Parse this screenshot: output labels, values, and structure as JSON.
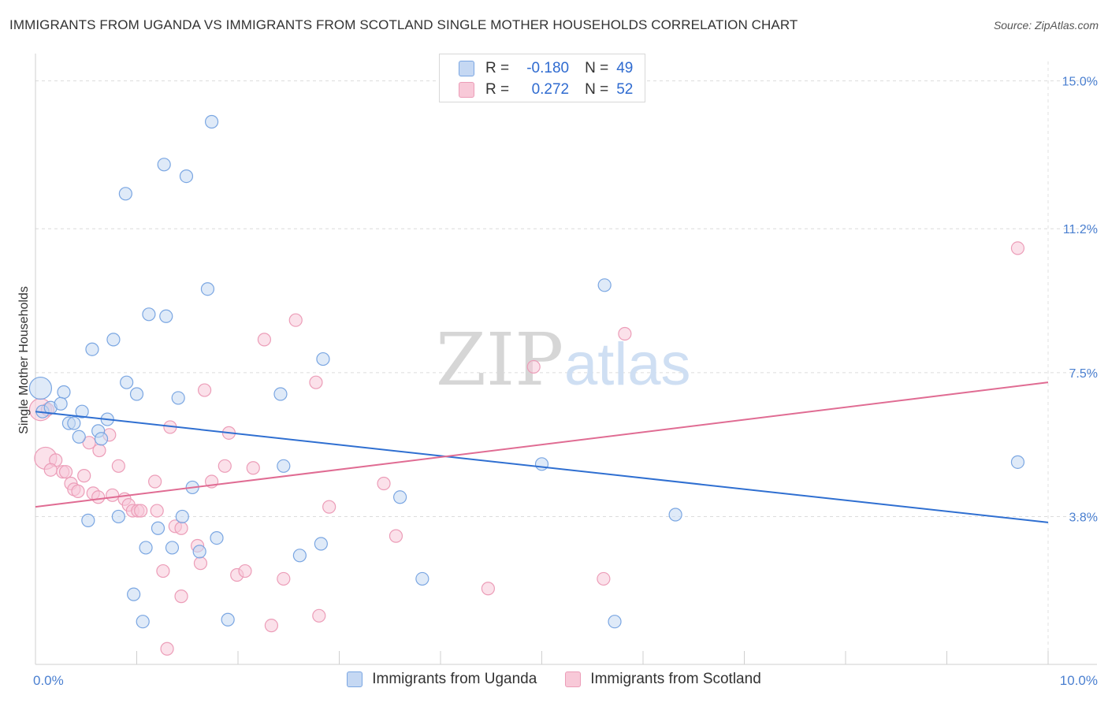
{
  "title": "IMMIGRANTS FROM UGANDA VS IMMIGRANTS FROM SCOTLAND SINGLE MOTHER HOUSEHOLDS CORRELATION CHART",
  "source": "Source: ZipAtlas.com",
  "watermark": {
    "zip": "ZIP",
    "atlas": "atlas"
  },
  "legend": {
    "rows": [
      {
        "r_label": "R =",
        "r_value": "-0.180",
        "n_label": "N =",
        "n_value": "49"
      },
      {
        "r_label": "R =",
        "r_value": "0.272",
        "n_label": "N =",
        "n_value": "52"
      }
    ]
  },
  "colors": {
    "uganda_fill": "#c5d8f3",
    "uganda_stroke": "#7aa6e2",
    "uganda_line": "#2f6fd1",
    "scotland_fill": "#f8c9d8",
    "scotland_stroke": "#ec9db8",
    "scotland_line": "#e06c93",
    "tick_text": "#4a7fd0"
  },
  "chart_data": {
    "type": "scatter",
    "title": "IMMIGRANTS FROM UGANDA VS IMMIGRANTS FROM SCOTLAND SINGLE MOTHER HOUSEHOLDS CORRELATION CHART",
    "xlabel": "",
    "ylabel": "Single Mother Households",
    "xlim": [
      0,
      10
    ],
    "ylim": [
      0,
      15.5
    ],
    "x_tick_labels": [
      "0.0%",
      "10.0%"
    ],
    "y_ticks": [
      {
        "value": 3.8,
        "label": "3.8%"
      },
      {
        "value": 7.5,
        "label": "7.5%"
      },
      {
        "value": 11.2,
        "label": "11.2%"
      },
      {
        "value": 15.0,
        "label": "15.0%"
      }
    ],
    "series": [
      {
        "name": "Immigrants from Uganda",
        "r": -0.18,
        "n": 49,
        "trend": {
          "x": [
            0,
            10
          ],
          "y": [
            6.5,
            3.65
          ]
        },
        "points": [
          {
            "x": 0.05,
            "y": 7.1,
            "big": true
          },
          {
            "x": 0.07,
            "y": 6.5
          },
          {
            "x": 0.15,
            "y": 6.6
          },
          {
            "x": 0.28,
            "y": 7.0
          },
          {
            "x": 0.25,
            "y": 6.7
          },
          {
            "x": 0.33,
            "y": 6.2
          },
          {
            "x": 0.38,
            "y": 6.2
          },
          {
            "x": 0.43,
            "y": 5.85
          },
          {
            "x": 0.46,
            "y": 6.5
          },
          {
            "x": 0.52,
            "y": 3.7
          },
          {
            "x": 0.56,
            "y": 8.1
          },
          {
            "x": 0.62,
            "y": 6.0
          },
          {
            "x": 0.65,
            "y": 5.8
          },
          {
            "x": 0.71,
            "y": 6.3
          },
          {
            "x": 0.77,
            "y": 8.35
          },
          {
            "x": 0.82,
            "y": 3.8
          },
          {
            "x": 0.89,
            "y": 12.1
          },
          {
            "x": 0.9,
            "y": 7.25
          },
          {
            "x": 0.97,
            "y": 1.8
          },
          {
            "x": 1.0,
            "y": 6.95
          },
          {
            "x": 1.06,
            "y": 1.1
          },
          {
            "x": 1.09,
            "y": 3.0
          },
          {
            "x": 1.12,
            "y": 9.0
          },
          {
            "x": 1.21,
            "y": 3.5
          },
          {
            "x": 1.27,
            "y": 12.85
          },
          {
            "x": 1.29,
            "y": 8.95
          },
          {
            "x": 1.35,
            "y": 3.0
          },
          {
            "x": 1.41,
            "y": 6.85
          },
          {
            "x": 1.45,
            "y": 3.8
          },
          {
            "x": 1.49,
            "y": 12.55
          },
          {
            "x": 1.55,
            "y": 4.55
          },
          {
            "x": 1.62,
            "y": 2.9
          },
          {
            "x": 1.7,
            "y": 9.65
          },
          {
            "x": 1.74,
            "y": 13.95
          },
          {
            "x": 1.79,
            "y": 3.25
          },
          {
            "x": 1.9,
            "y": 1.15
          },
          {
            "x": 2.42,
            "y": 6.95
          },
          {
            "x": 2.45,
            "y": 5.1
          },
          {
            "x": 2.61,
            "y": 2.8
          },
          {
            "x": 2.82,
            "y": 3.1
          },
          {
            "x": 2.84,
            "y": 7.85
          },
          {
            "x": 3.6,
            "y": 4.3
          },
          {
            "x": 3.82,
            "y": 2.2
          },
          {
            "x": 5.0,
            "y": 5.15
          },
          {
            "x": 5.62,
            "y": 9.75
          },
          {
            "x": 5.72,
            "y": 1.1
          },
          {
            "x": 6.32,
            "y": 3.85
          },
          {
            "x": 9.7,
            "y": 5.2
          }
        ]
      },
      {
        "name": "Immigrants from Scotland",
        "r": 0.272,
        "n": 52,
        "trend": {
          "x": [
            0,
            10
          ],
          "y": [
            4.05,
            7.25
          ]
        },
        "points": [
          {
            "x": 0.05,
            "y": 6.55,
            "big": true
          },
          {
            "x": 0.1,
            "y": 5.3,
            "big": true
          },
          {
            "x": 0.12,
            "y": 6.55
          },
          {
            "x": 0.2,
            "y": 5.25
          },
          {
            "x": 0.15,
            "y": 5.0
          },
          {
            "x": 0.27,
            "y": 4.95
          },
          {
            "x": 0.3,
            "y": 4.95
          },
          {
            "x": 0.35,
            "y": 4.65
          },
          {
            "x": 0.38,
            "y": 4.5
          },
          {
            "x": 0.42,
            "y": 4.45
          },
          {
            "x": 0.48,
            "y": 4.85
          },
          {
            "x": 0.53,
            "y": 5.7
          },
          {
            "x": 0.57,
            "y": 4.4
          },
          {
            "x": 0.62,
            "y": 4.3
          },
          {
            "x": 0.63,
            "y": 5.5
          },
          {
            "x": 0.73,
            "y": 5.9
          },
          {
            "x": 0.76,
            "y": 4.35
          },
          {
            "x": 0.82,
            "y": 5.1
          },
          {
            "x": 0.88,
            "y": 4.25
          },
          {
            "x": 0.92,
            "y": 4.1
          },
          {
            "x": 0.96,
            "y": 3.95
          },
          {
            "x": 1.01,
            "y": 3.95
          },
          {
            "x": 1.04,
            "y": 3.95
          },
          {
            "x": 1.18,
            "y": 4.7
          },
          {
            "x": 1.2,
            "y": 3.95
          },
          {
            "x": 1.26,
            "y": 2.4
          },
          {
            "x": 1.3,
            "y": 0.4
          },
          {
            "x": 1.33,
            "y": 6.1
          },
          {
            "x": 1.38,
            "y": 3.55
          },
          {
            "x": 1.44,
            "y": 3.5
          },
          {
            "x": 1.44,
            "y": 1.75
          },
          {
            "x": 1.6,
            "y": 3.05
          },
          {
            "x": 1.63,
            "y": 2.6
          },
          {
            "x": 1.67,
            "y": 7.05
          },
          {
            "x": 1.74,
            "y": 4.7
          },
          {
            "x": 1.87,
            "y": 5.1
          },
          {
            "x": 1.91,
            "y": 5.95
          },
          {
            "x": 1.99,
            "y": 2.3
          },
          {
            "x": 2.07,
            "y": 2.4
          },
          {
            "x": 2.15,
            "y": 5.05
          },
          {
            "x": 2.26,
            "y": 8.35
          },
          {
            "x": 2.33,
            "y": 1.0
          },
          {
            "x": 2.45,
            "y": 2.2
          },
          {
            "x": 2.57,
            "y": 8.85
          },
          {
            "x": 2.77,
            "y": 7.25
          },
          {
            "x": 2.8,
            "y": 1.25
          },
          {
            "x": 2.9,
            "y": 4.05
          },
          {
            "x": 3.44,
            "y": 4.65
          },
          {
            "x": 3.56,
            "y": 3.3
          },
          {
            "x": 4.47,
            "y": 1.95
          },
          {
            "x": 4.92,
            "y": 7.65
          },
          {
            "x": 5.61,
            "y": 2.2
          },
          {
            "x": 5.82,
            "y": 8.5
          },
          {
            "x": 9.7,
            "y": 10.7
          }
        ]
      }
    ]
  }
}
